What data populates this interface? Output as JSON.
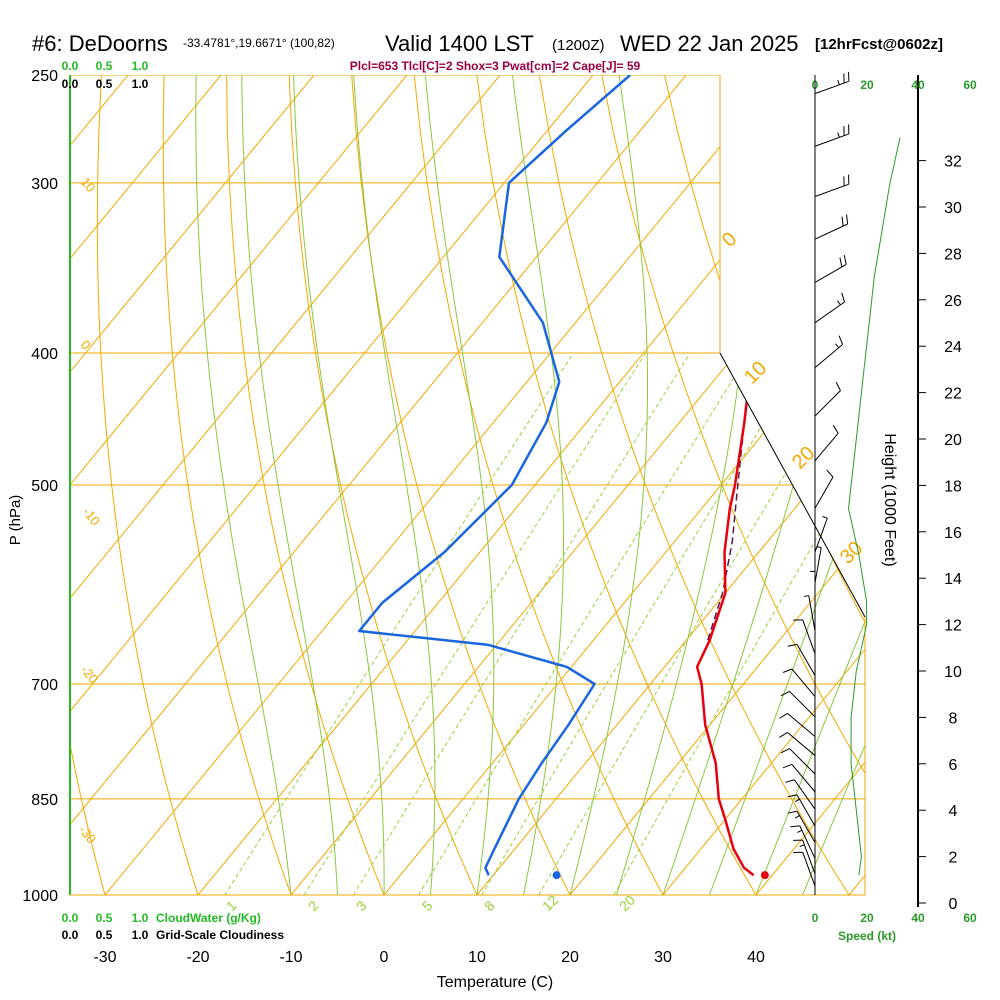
{
  "chart_data": {
    "type": "skew-t",
    "title": {
      "station": "#6: DeDoorns",
      "coords": "-33.4781°,19.6671° (100,82)",
      "valid": "Valid 1400 LST",
      "utc": "(1200Z)",
      "date": "WED 22 Jan 2025",
      "fcst": "[12hrFcst@0602z]"
    },
    "indices": "Plcl=653 Tlcl[C]=2 Shox=3 Pwat[cm]=2 Cape[J]= 59",
    "xlabel": "Temperature (C)",
    "ylabel": "P (hPa)",
    "height_label": "Height (1000 Feet)",
    "speed_label": "Speed (kt)",
    "cloudwater_label": "CloudWater (g/Kg)",
    "cloudiness_label": "Grid-Scale Cloudiness",
    "temp_ticks": [
      -30,
      -20,
      -10,
      0,
      10,
      20,
      30,
      40
    ],
    "pressure_ticks": [
      250,
      300,
      400,
      500,
      700,
      850,
      1000
    ],
    "height_ticks": [
      0,
      2,
      4,
      6,
      8,
      10,
      12,
      14,
      16,
      18,
      20,
      22,
      24,
      26,
      28,
      30,
      32
    ],
    "cloud_ticks": [
      "0.0",
      "0.5",
      "1.0"
    ],
    "speed_ticks": [
      0,
      20,
      40,
      60
    ],
    "isotherm_labels": [
      "10",
      "0",
      "-10",
      "-20",
      "-30"
    ],
    "dry_adiabat_labels": [
      "0",
      "10",
      "20",
      "30"
    ],
    "mixing_ratio_labels": [
      "1",
      "2",
      "3",
      "5",
      "8",
      "12",
      "20"
    ],
    "xlim": [
      -33,
      52
    ],
    "plim": [
      250,
      1000
    ],
    "temperature_profile": [
      {
        "p": 967,
        "t": 38.0
      },
      {
        "p": 955,
        "t": 36.3
      },
      {
        "p": 925,
        "t": 33.5
      },
      {
        "p": 880,
        "t": 30.0
      },
      {
        "p": 850,
        "t": 27.5
      },
      {
        "p": 800,
        "t": 24.0
      },
      {
        "p": 750,
        "t": 19.5
      },
      {
        "p": 700,
        "t": 15.5
      },
      {
        "p": 680,
        "t": 13.5
      },
      {
        "p": 650,
        "t": 12.5
      },
      {
        "p": 600,
        "t": 10.0
      },
      {
        "p": 560,
        "t": 6.3
      },
      {
        "p": 520,
        "t": 3.0
      },
      {
        "p": 500,
        "t": 1.5
      },
      {
        "p": 450,
        "t": -3.0
      },
      {
        "p": 400,
        "t": -8.3
      },
      {
        "p": 350,
        "t": -15.7
      },
      {
        "p": 300,
        "t": -23.8
      },
      {
        "p": 270,
        "t": -29.5
      },
      {
        "p": 250,
        "t": -34.0
      }
    ],
    "dewpoint_profile": [
      {
        "p": 967,
        "t": 9.5
      },
      {
        "p": 955,
        "t": 8.5
      },
      {
        "p": 925,
        "t": 7.8
      },
      {
        "p": 850,
        "t": 6.0
      },
      {
        "p": 800,
        "t": 5.3
      },
      {
        "p": 750,
        "t": 4.8
      },
      {
        "p": 700,
        "t": 4.0
      },
      {
        "p": 680,
        "t": -0.5
      },
      {
        "p": 655,
        "t": -11.0
      },
      {
        "p": 640,
        "t": -26.0
      },
      {
        "p": 610,
        "t": -26.0
      },
      {
        "p": 560,
        "t": -23.8
      },
      {
        "p": 500,
        "t": -22.5
      },
      {
        "p": 450,
        "t": -24.3
      },
      {
        "p": 420,
        "t": -26.5
      },
      {
        "p": 380,
        "t": -33.5
      },
      {
        "p": 340,
        "t": -44.0
      },
      {
        "p": 300,
        "t": -49.5
      },
      {
        "p": 275,
        "t": -48.0
      },
      {
        "p": 250,
        "t": -46.0
      }
    ],
    "parcel_profile": [
      {
        "p": 650,
        "t": 12.3
      },
      {
        "p": 600,
        "t": 9.7
      },
      {
        "p": 550,
        "t": 6.2
      },
      {
        "p": 500,
        "t": 1.8
      },
      {
        "p": 450,
        "t": -3.0
      },
      {
        "p": 400,
        "t": -8.5
      },
      {
        "p": 350,
        "t": -15.5
      },
      {
        "p": 300,
        "t": -23.5
      },
      {
        "p": 250,
        "t": -33.0
      }
    ],
    "surface_temperature": {
      "p": 967,
      "t": 39.2
    },
    "surface_dewpoint": {
      "p": 967,
      "t": 16.8
    },
    "wind_speed_profile": [
      {
        "h": 1.2,
        "s": 17
      },
      {
        "h": 2,
        "s": 18
      },
      {
        "h": 4,
        "s": 16
      },
      {
        "h": 6,
        "s": 14
      },
      {
        "h": 8,
        "s": 14
      },
      {
        "h": 10,
        "s": 16
      },
      {
        "h": 12,
        "s": 20
      },
      {
        "h": 13,
        "s": 20
      },
      {
        "h": 15,
        "s": 17
      },
      {
        "h": 17,
        "s": 13
      },
      {
        "h": 19,
        "s": 15
      },
      {
        "h": 21,
        "s": 17
      },
      {
        "h": 23,
        "s": 19
      },
      {
        "h": 25,
        "s": 21
      },
      {
        "h": 27,
        "s": 23
      },
      {
        "h": 29,
        "s": 26
      },
      {
        "h": 31,
        "s": 29
      },
      {
        "h": 33,
        "s": 33
      }
    ],
    "wind_barbs": [
      {
        "p": 258,
        "dir": 250,
        "spd": 25
      },
      {
        "p": 282,
        "dir": 250,
        "spd": 25
      },
      {
        "p": 307,
        "dir": 250,
        "spd": 20
      },
      {
        "p": 330,
        "dir": 245,
        "spd": 20
      },
      {
        "p": 355,
        "dir": 240,
        "spd": 20
      },
      {
        "p": 380,
        "dir": 235,
        "spd": 15
      },
      {
        "p": 410,
        "dir": 230,
        "spd": 15
      },
      {
        "p": 445,
        "dir": 225,
        "spd": 10
      },
      {
        "p": 480,
        "dir": 220,
        "spd": 10
      },
      {
        "p": 520,
        "dir": 210,
        "spd": 10
      },
      {
        "p": 560,
        "dir": 200,
        "spd": 5
      },
      {
        "p": 590,
        "dir": 190,
        "spd": 5
      },
      {
        "p": 615,
        "dir": 180,
        "spd": 5
      },
      {
        "p": 640,
        "dir": 170,
        "spd": 5
      },
      {
        "p": 665,
        "dir": 160,
        "spd": 10
      },
      {
        "p": 690,
        "dir": 150,
        "spd": 10
      },
      {
        "p": 715,
        "dir": 140,
        "spd": 10
      },
      {
        "p": 740,
        "dir": 135,
        "spd": 10
      },
      {
        "p": 765,
        "dir": 130,
        "spd": 10
      },
      {
        "p": 790,
        "dir": 130,
        "spd": 10
      },
      {
        "p": 815,
        "dir": 135,
        "spd": 10
      },
      {
        "p": 840,
        "dir": 140,
        "spd": 10
      },
      {
        "p": 865,
        "dir": 145,
        "spd": 10
      },
      {
        "p": 890,
        "dir": 150,
        "spd": 15
      },
      {
        "p": 915,
        "dir": 150,
        "spd": 15
      },
      {
        "p": 940,
        "dir": 155,
        "spd": 15
      },
      {
        "p": 965,
        "dir": 160,
        "spd": 15
      },
      {
        "p": 985,
        "dir": 160,
        "spd": 10
      }
    ],
    "colors": {
      "isobar": "#f2a900",
      "isotherm": "#f2a900",
      "dry_adiabat": "#f2a900",
      "moist_adiabat": "#8cc63f",
      "mixing_ratio": "#9ad13a",
      "temperature": "#e8000d",
      "dewpoint": "#1a66e0",
      "parcel": "#5a1a4a",
      "wind_speed": "#2a9a2a",
      "cloud_axis": "#22bb22",
      "indices": "#990044"
    }
  }
}
